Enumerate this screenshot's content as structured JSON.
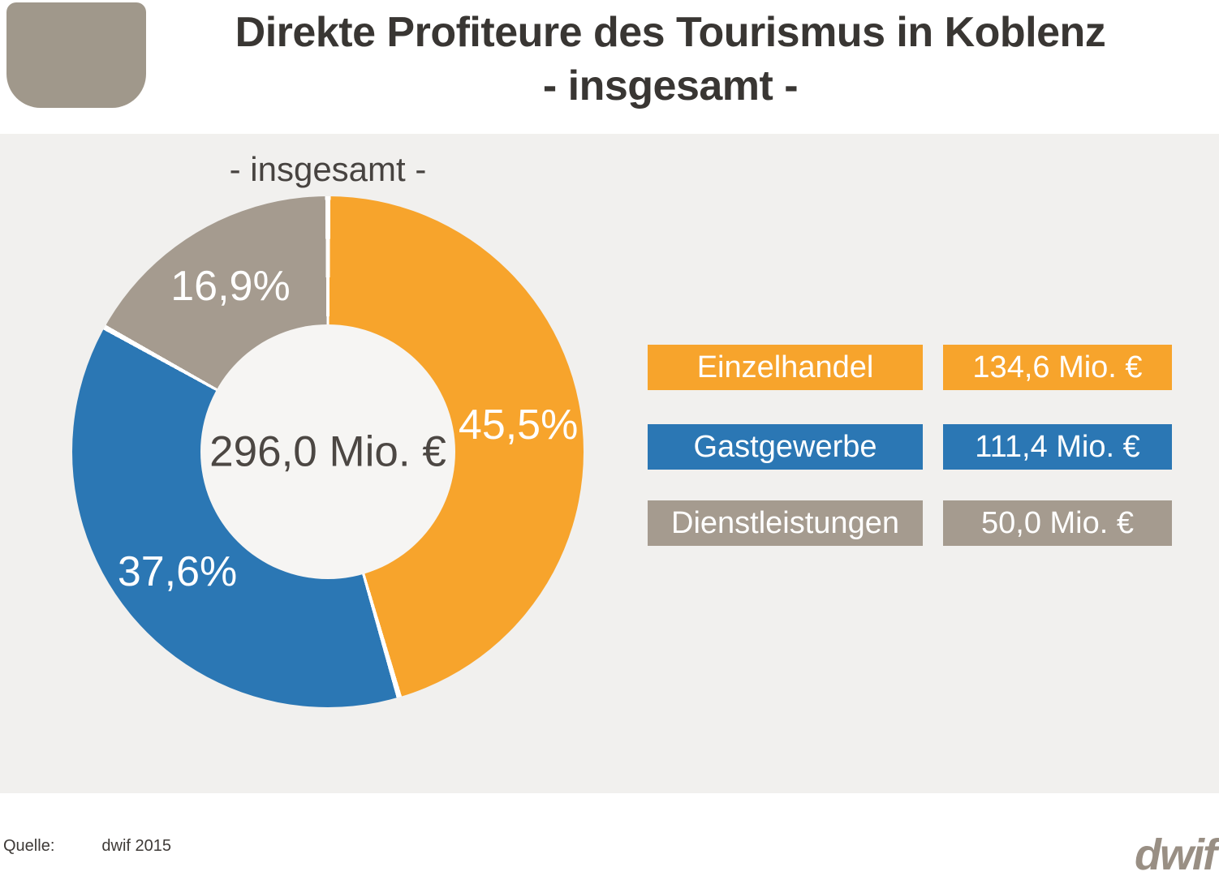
{
  "title": {
    "line1": "Direkte Profiteure des Tourismus in Koblenz",
    "line2": "- insgesamt -"
  },
  "chart": {
    "subtitle": "- insgesamt -",
    "center_label": "296,0 Mio. €"
  },
  "legend": {
    "rows": [
      {
        "label": "Einzelhandel",
        "value": "134,6 Mio. €",
        "color": "#f7a42c"
      },
      {
        "label": "Gastgewerbe",
        "value": "111,4 Mio. €",
        "color": "#2b77b4"
      },
      {
        "label": "Dienstleistungen",
        "value": "50,0 Mio. €",
        "color": "#a59b8f"
      }
    ]
  },
  "footer": {
    "source_label": "Quelle:",
    "source_value": "dwif 2015",
    "logo_text": "dwif"
  },
  "colors": {
    "panel_background": "#f1f0ee",
    "donut_hole": "#f6f5f3",
    "separator": "#ffffff",
    "logo_shield": "#a0988b"
  },
  "chart_data": {
    "type": "pie",
    "subtype": "donut",
    "title": "Direkte Profiteure des Tourismus in Koblenz - insgesamt -",
    "subtitle": "- insgesamt -",
    "categories": [
      "Einzelhandel",
      "Gastgewerbe",
      "Dienstleistungen"
    ],
    "values_percent": [
      45.5,
      37.6,
      16.9
    ],
    "percent_labels": [
      "45,5%",
      "37,6%",
      "16,9%"
    ],
    "values_mio_eur": [
      134.6,
      111.4,
      50.0
    ],
    "value_labels": [
      "134,6 Mio. €",
      "111,4 Mio. €",
      "50,0 Mio. €"
    ],
    "total_mio_eur": 296.0,
    "total_label": "296,0 Mio. €",
    "colors": [
      "#f7a42c",
      "#2b77b4",
      "#a59b8f"
    ],
    "start_angle_deg": 0,
    "direction": "clockwise",
    "legend_position": "right",
    "source": "dwif 2015"
  }
}
